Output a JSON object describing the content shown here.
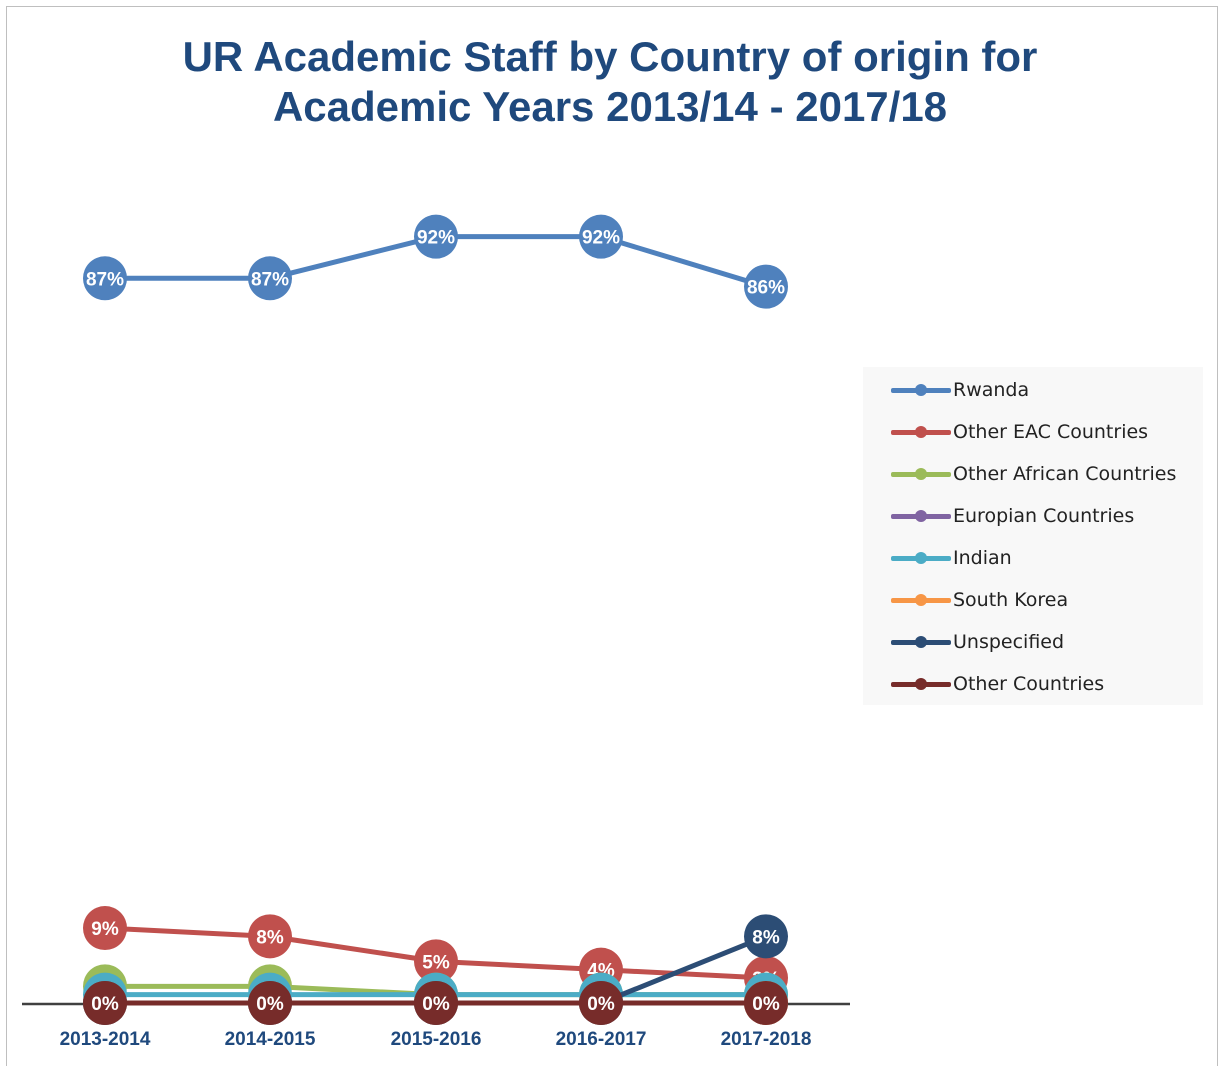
{
  "title": {
    "line1": "UR Academic Staff by Country of origin for",
    "line2": "Academic Years 2013/14 - 2017/18"
  },
  "chart_data": {
    "type": "line",
    "title": "UR Academic Staff by Country of origin for Academic Years 2013/14 - 2017/18",
    "xlabel": "",
    "ylabel": "",
    "categories": [
      "2013-2014",
      "2014-2015",
      "2015-2016",
      "2016-2017",
      "2017-2018"
    ],
    "ylim": [
      0,
      100
    ],
    "grid": false,
    "legend_position": "right",
    "series": [
      {
        "name": "Rwanda",
        "color": "#4f81bd",
        "values": [
          87,
          87,
          92,
          92,
          86
        ],
        "labels": [
          "87%",
          "87%",
          "92%",
          "92%",
          "86%"
        ]
      },
      {
        "name": "Other EAC Countries",
        "color": "#c0504d",
        "values": [
          9,
          8,
          5,
          4,
          3
        ],
        "labels": [
          "9%",
          "8%",
          "5%",
          "4%",
          "3%"
        ]
      },
      {
        "name": "Other African Countries",
        "color": "#9bbb59",
        "values": [
          2,
          2,
          1,
          1,
          1
        ],
        "labels": [
          "2%",
          "2%",
          "1%",
          "1%",
          "1%"
        ]
      },
      {
        "name": "Europian Countries",
        "color": "#8064a2",
        "values": [
          0,
          0,
          0,
          0,
          0
        ],
        "labels": [
          "0%",
          "0%",
          "0%",
          "0%",
          "0%"
        ]
      },
      {
        "name": "Indian",
        "color": "#4bacc6",
        "values": [
          1,
          1,
          1,
          1,
          1
        ],
        "labels": [
          "1%",
          "1%",
          "1%",
          "1%",
          "1%"
        ]
      },
      {
        "name": "South Korea",
        "color": "#f79646",
        "values": [
          0,
          0,
          0,
          0,
          0
        ],
        "labels": [
          "0%",
          "0%",
          "0%",
          "0%",
          "0%"
        ]
      },
      {
        "name": "Unspecified",
        "color": "#2c4d75",
        "values": [
          0,
          0,
          0,
          0,
          8
        ],
        "labels": [
          "0%",
          "0%",
          "0%",
          "0%",
          "8%"
        ]
      },
      {
        "name": "Other Countries",
        "color": "#772c2a",
        "values": [
          0,
          0,
          0,
          0,
          0
        ],
        "labels": [
          "0%",
          "0%",
          "0%",
          "0%",
          "0%"
        ]
      }
    ]
  }
}
